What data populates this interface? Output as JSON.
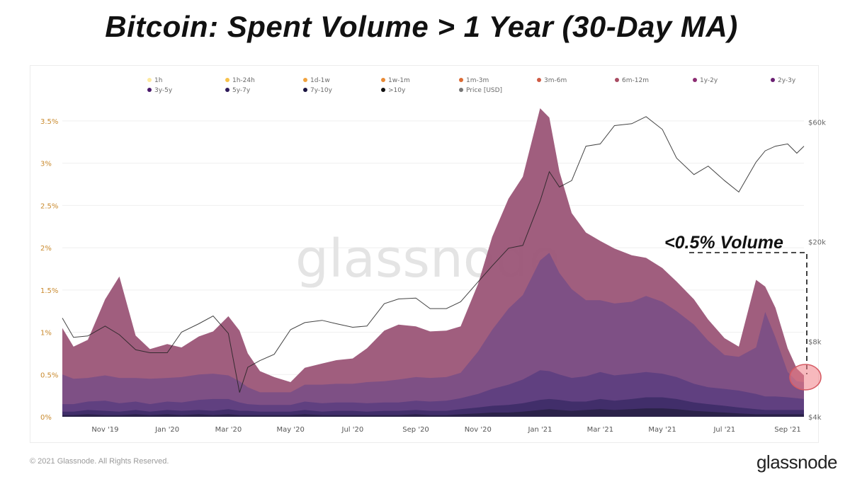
{
  "title": "Bitcoin: Spent Volume > 1 Year (30-Day MA)",
  "footer": {
    "copyright": "© 2021 Glassnode. All Rights Reserved.",
    "brand": "glassnode"
  },
  "watermark": "glassnode",
  "annotation": "<0.5% Volume",
  "colors": {
    "band_1y_2y": "#9b5577",
    "band_2y_3y": "#7c4f86",
    "band_3y_5y": "#5f3f80",
    "band_5y_7y": "#3f2d68",
    "band_7y_10y": "#2a2248",
    "price": "#222222",
    "highlight": "#f07f86"
  },
  "chart_data": {
    "type": "area",
    "x": [
      "2019-09-20",
      "2019-10-01",
      "2019-10-15",
      "2019-11-01",
      "2019-11-15",
      "2019-12-01",
      "2019-12-15",
      "2020-01-01",
      "2020-01-15",
      "2020-02-01",
      "2020-02-15",
      "2020-03-01",
      "2020-03-12",
      "2020-03-20",
      "2020-04-01",
      "2020-04-15",
      "2020-05-01",
      "2020-05-15",
      "2020-06-01",
      "2020-06-15",
      "2020-07-01",
      "2020-07-15",
      "2020-08-01",
      "2020-08-15",
      "2020-09-01",
      "2020-09-15",
      "2020-10-01",
      "2020-10-15",
      "2020-11-01",
      "2020-11-15",
      "2020-12-01",
      "2020-12-15",
      "2021-01-01",
      "2021-01-10",
      "2021-01-20",
      "2021-02-01",
      "2021-02-15",
      "2021-03-01",
      "2021-03-15",
      "2021-04-01",
      "2021-04-15",
      "2021-05-01",
      "2021-05-15",
      "2021-06-01",
      "2021-06-15",
      "2021-07-01",
      "2021-07-15",
      "2021-08-01",
      "2021-08-10",
      "2021-08-20",
      "2021-09-01",
      "2021-09-10",
      "2021-09-17"
    ],
    "series": [
      {
        "name": "7y-10y",
        "values": [
          0.02,
          0.02,
          0.03,
          0.02,
          0.02,
          0.03,
          0.02,
          0.03,
          0.02,
          0.03,
          0.02,
          0.03,
          0.02,
          0.02,
          0.02,
          0.02,
          0.02,
          0.03,
          0.02,
          0.02,
          0.02,
          0.02,
          0.02,
          0.02,
          0.03,
          0.02,
          0.02,
          0.03,
          0.04,
          0.05,
          0.05,
          0.06,
          0.08,
          0.09,
          0.08,
          0.07,
          0.08,
          0.09,
          0.08,
          0.09,
          0.1,
          0.1,
          0.09,
          0.07,
          0.06,
          0.05,
          0.04,
          0.03,
          0.03,
          0.03,
          0.03,
          0.03,
          0.03
        ]
      },
      {
        "name": "5y-7y",
        "values": [
          0.04,
          0.04,
          0.05,
          0.05,
          0.04,
          0.05,
          0.04,
          0.05,
          0.05,
          0.05,
          0.05,
          0.06,
          0.05,
          0.05,
          0.04,
          0.04,
          0.04,
          0.05,
          0.04,
          0.05,
          0.05,
          0.04,
          0.05,
          0.05,
          0.05,
          0.05,
          0.05,
          0.06,
          0.07,
          0.08,
          0.09,
          0.1,
          0.12,
          0.12,
          0.12,
          0.11,
          0.1,
          0.12,
          0.11,
          0.12,
          0.13,
          0.13,
          0.12,
          0.1,
          0.09,
          0.08,
          0.07,
          0.06,
          0.05,
          0.05,
          0.05,
          0.05,
          0.05
        ]
      },
      {
        "name": "3y-5y",
        "values": [
          0.09,
          0.09,
          0.1,
          0.12,
          0.1,
          0.1,
          0.09,
          0.1,
          0.1,
          0.12,
          0.14,
          0.12,
          0.1,
          0.08,
          0.08,
          0.08,
          0.08,
          0.1,
          0.1,
          0.1,
          0.1,
          0.1,
          0.1,
          0.1,
          0.11,
          0.11,
          0.12,
          0.13,
          0.16,
          0.2,
          0.24,
          0.28,
          0.35,
          0.33,
          0.3,
          0.28,
          0.3,
          0.32,
          0.3,
          0.3,
          0.3,
          0.28,
          0.26,
          0.22,
          0.2,
          0.2,
          0.2,
          0.18,
          0.16,
          0.16,
          0.15,
          0.14,
          0.13
        ]
      },
      {
        "name": "2y-3y",
        "values": [
          0.35,
          0.3,
          0.28,
          0.3,
          0.3,
          0.28,
          0.3,
          0.28,
          0.3,
          0.3,
          0.3,
          0.28,
          0.25,
          0.2,
          0.15,
          0.15,
          0.15,
          0.2,
          0.22,
          0.22,
          0.22,
          0.25,
          0.25,
          0.27,
          0.28,
          0.28,
          0.28,
          0.3,
          0.5,
          0.7,
          0.9,
          1.0,
          1.3,
          1.4,
          1.2,
          1.05,
          0.9,
          0.85,
          0.85,
          0.85,
          0.9,
          0.85,
          0.78,
          0.7,
          0.55,
          0.4,
          0.4,
          0.55,
          1.0,
          0.7,
          0.3,
          0.2,
          0.2
        ]
      },
      {
        "name": "1y-2y",
        "values": [
          0.55,
          0.38,
          0.45,
          0.9,
          1.2,
          0.5,
          0.35,
          0.4,
          0.35,
          0.45,
          0.5,
          0.7,
          0.6,
          0.4,
          0.25,
          0.18,
          0.12,
          0.2,
          0.25,
          0.28,
          0.3,
          0.4,
          0.6,
          0.65,
          0.6,
          0.55,
          0.55,
          0.55,
          0.8,
          1.1,
          1.3,
          1.4,
          1.8,
          1.6,
          1.2,
          0.9,
          0.8,
          0.7,
          0.65,
          0.55,
          0.45,
          0.4,
          0.35,
          0.3,
          0.25,
          0.2,
          0.12,
          0.8,
          0.3,
          0.35,
          0.28,
          0.15,
          0.08
        ]
      },
      {
        "name": "Price [USD]",
        "values": [
          9900,
          8300,
          8400,
          9200,
          8500,
          7400,
          7200,
          7200,
          8700,
          9400,
          10100,
          8600,
          5000,
          6300,
          6700,
          7100,
          8900,
          9500,
          9700,
          9400,
          9100,
          9200,
          11300,
          11800,
          11900,
          10800,
          10800,
          11500,
          13800,
          16000,
          18800,
          19300,
          29000,
          38000,
          33000,
          35000,
          48000,
          49000,
          58000,
          59000,
          63000,
          56000,
          43000,
          37000,
          40000,
          35000,
          31500,
          41500,
          46000,
          48000,
          49000,
          45000,
          48000
        ]
      }
    ],
    "legend": [
      "1h",
      "1h-24h",
      "1d-1w",
      "1w-1m",
      "1m-3m",
      "3m-6m",
      "6m-12m",
      "1y-2y",
      "2y-3y",
      "3y-5y",
      "5y-7y",
      "7y-10y",
      ">10y",
      "Price [USD]"
    ],
    "legend_colors": [
      "#fde9a0",
      "#f7c24a",
      "#f0a33f",
      "#e88a36",
      "#db6b34",
      "#cf5b45",
      "#a84b62",
      "#8c2c72",
      "#6a1f72",
      "#4a1a6b",
      "#2e1a5a",
      "#1a1440",
      "#111111",
      "#777777"
    ],
    "legend_position": "top",
    "xlabel_ticks": [
      "Nov '19",
      "Jan '20",
      "Mar '20",
      "May '20",
      "Jul '20",
      "Sep '20",
      "Nov '20",
      "Jan '21",
      "Mar '21",
      "May '21",
      "Jul '21",
      "Sep '21"
    ],
    "ylim": [
      0,
      3.65
    ],
    "ylabel_ticks": [
      "0%",
      "0.5%",
      "1%",
      "1.5%",
      "2%",
      "2.5%",
      "3%",
      "3.5%"
    ],
    "y2_scale": "log",
    "y2lim": [
      4000,
      68000
    ],
    "y2label_ticks": [
      "$4k",
      "$8k",
      "$20k",
      "$60k"
    ],
    "grid": true
  }
}
